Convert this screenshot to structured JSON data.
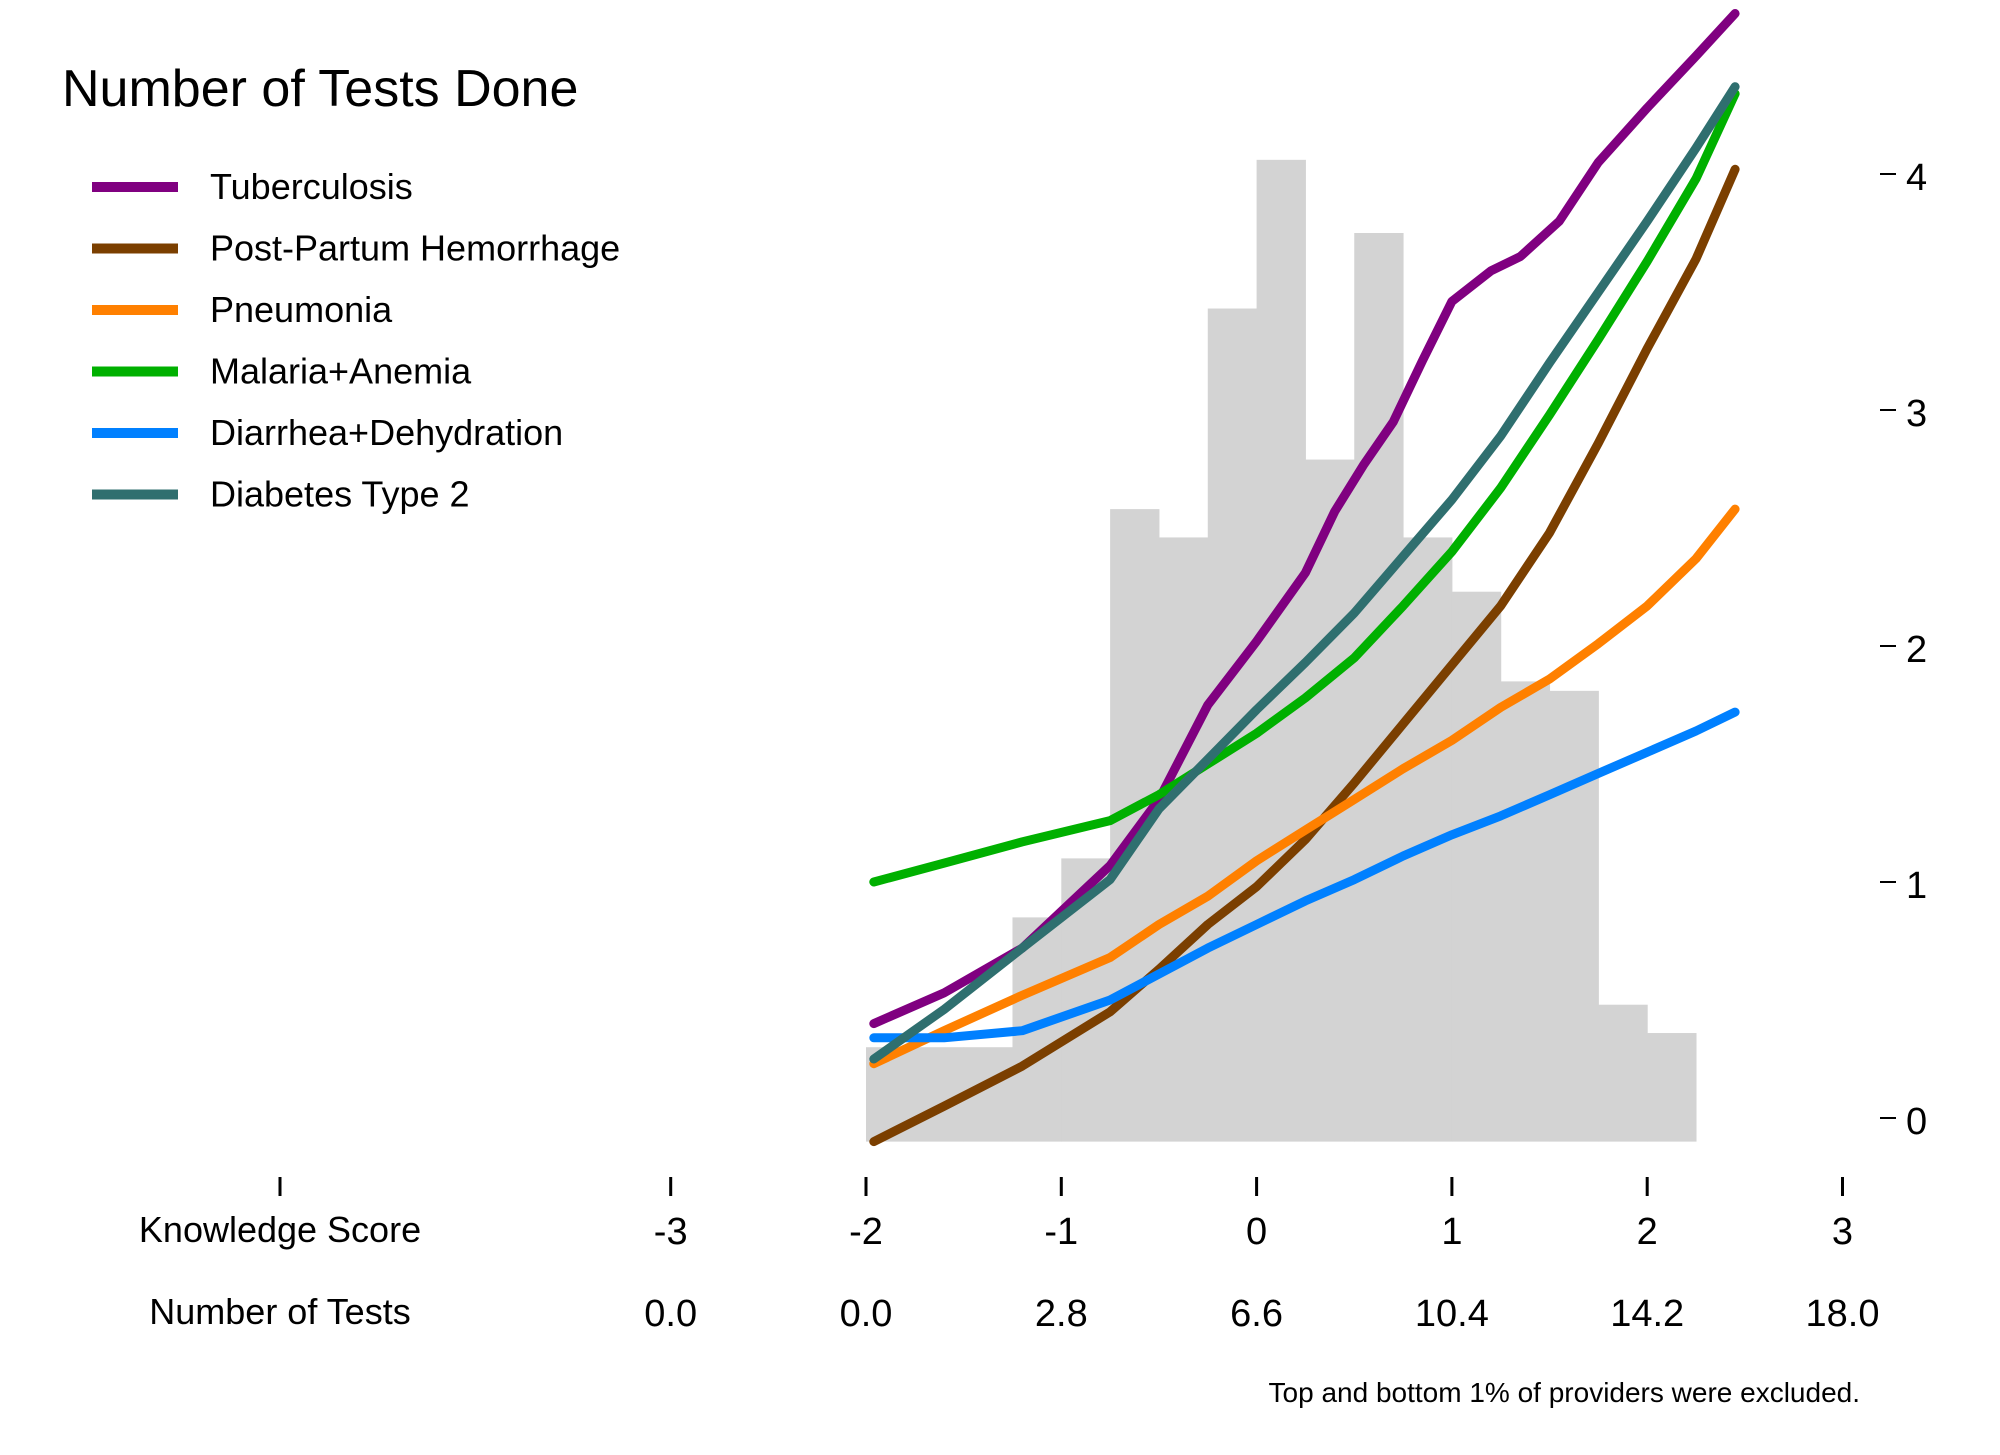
{
  "chart_data": {
    "type": "line",
    "title": "Number of Tests Done",
    "note": "Top and bottom 1% of providers were excluded.",
    "x_axis": {
      "row_labels": [
        "Knowledge Score",
        "Number of Tests"
      ],
      "ticks": [
        -3,
        -2,
        -1,
        0,
        1,
        2,
        3
      ],
      "tick_labels": [
        "-3",
        "-2",
        "-1",
        "0",
        "1",
        "2",
        "3"
      ],
      "secondary_labels": [
        "0.0",
        "0.0",
        "2.8",
        "6.6",
        "10.4",
        "14.2",
        "18.0"
      ],
      "xlim": [
        -4.0,
        3.0
      ]
    },
    "y_axis": {
      "side": "right",
      "ticks": [
        0,
        1,
        2,
        3,
        4
      ],
      "tick_labels": [
        "0",
        "1",
        "2",
        "3",
        "4"
      ],
      "ylim": [
        -0.1,
        4.1
      ]
    },
    "histogram": {
      "color": "#d3d3d3",
      "bin_width": 0.25,
      "bins": [
        {
          "x0": -2.0,
          "height": 0.3
        },
        {
          "x0": -1.75,
          "height": 0.3
        },
        {
          "x0": -1.5,
          "height": 0.3
        },
        {
          "x0": -1.25,
          "height": 0.85
        },
        {
          "x0": -1.0,
          "height": 1.1
        },
        {
          "x0": -0.75,
          "height": 2.58
        },
        {
          "x0": -0.5,
          "height": 2.46
        },
        {
          "x0": -0.25,
          "height": 3.43
        },
        {
          "x0": 0.0,
          "height": 4.06
        },
        {
          "x0": 0.25,
          "height": 2.79
        },
        {
          "x0": 0.5,
          "height": 3.75
        },
        {
          "x0": 0.75,
          "height": 2.46
        },
        {
          "x0": 1.0,
          "height": 2.23
        },
        {
          "x0": 1.25,
          "height": 1.85
        },
        {
          "x0": 1.5,
          "height": 1.81
        },
        {
          "x0": 1.75,
          "height": 0.48
        },
        {
          "x0": 2.0,
          "height": 0.36
        }
      ]
    },
    "legend_position": "top-left",
    "series": [
      {
        "name": "Tuberculosis",
        "color": "#800080",
        "x": [
          -1.96,
          -1.6,
          -1.2,
          -0.75,
          -0.5,
          -0.25,
          0.0,
          0.25,
          0.4,
          0.55,
          0.7,
          0.85,
          1.0,
          1.2,
          1.35,
          1.55,
          1.75,
          2.0,
          2.25,
          2.45
        ],
        "y": [
          0.4,
          0.53,
          0.72,
          1.07,
          1.35,
          1.75,
          2.02,
          2.31,
          2.57,
          2.77,
          2.95,
          3.21,
          3.46,
          3.59,
          3.65,
          3.8,
          4.05,
          4.28,
          4.5,
          4.68
        ]
      },
      {
        "name": "Post-Partum Hemorrhage",
        "color": "#7b3f00",
        "x": [
          -1.96,
          -1.6,
          -1.2,
          -0.75,
          -0.5,
          -0.25,
          0.0,
          0.25,
          0.5,
          0.75,
          1.0,
          1.25,
          1.5,
          1.75,
          2.0,
          2.25,
          2.45
        ],
        "y": [
          -0.1,
          0.05,
          0.22,
          0.45,
          0.63,
          0.82,
          0.98,
          1.18,
          1.42,
          1.67,
          1.92,
          2.17,
          2.48,
          2.86,
          3.26,
          3.64,
          4.02
        ]
      },
      {
        "name": "Pneumonia",
        "color": "#ff8000",
        "x": [
          -1.96,
          -1.6,
          -1.2,
          -0.75,
          -0.5,
          -0.25,
          0.0,
          0.25,
          0.5,
          0.75,
          1.0,
          1.25,
          1.5,
          1.75,
          2.0,
          2.25,
          2.45
        ],
        "y": [
          0.23,
          0.37,
          0.52,
          0.68,
          0.82,
          0.94,
          1.09,
          1.22,
          1.35,
          1.48,
          1.6,
          1.74,
          1.86,
          2.01,
          2.17,
          2.37,
          2.58
        ]
      },
      {
        "name": "Malaria+Anemia",
        "color": "#00b000",
        "x": [
          -1.96,
          -1.6,
          -1.2,
          -0.75,
          -0.5,
          -0.25,
          0.0,
          0.25,
          0.5,
          0.75,
          1.0,
          1.25,
          1.5,
          1.75,
          2.0,
          2.25,
          2.45
        ],
        "y": [
          1.0,
          1.08,
          1.17,
          1.26,
          1.37,
          1.5,
          1.63,
          1.78,
          1.95,
          2.17,
          2.4,
          2.67,
          2.98,
          3.3,
          3.63,
          3.98,
          4.34
        ]
      },
      {
        "name": "Diarrhea+Dehydration",
        "color": "#0080ff",
        "x": [
          -1.96,
          -1.6,
          -1.2,
          -0.75,
          -0.5,
          -0.25,
          0.0,
          0.25,
          0.5,
          0.75,
          1.0,
          1.25,
          1.5,
          1.75,
          2.0,
          2.25,
          2.45
        ],
        "y": [
          0.34,
          0.34,
          0.37,
          0.5,
          0.61,
          0.72,
          0.82,
          0.92,
          1.01,
          1.11,
          1.2,
          1.28,
          1.37,
          1.46,
          1.55,
          1.64,
          1.72
        ]
      },
      {
        "name": "Diabetes Type 2",
        "color": "#2f6f6f",
        "x": [
          -1.96,
          -1.6,
          -1.2,
          -0.75,
          -0.5,
          -0.25,
          0.0,
          0.25,
          0.5,
          0.75,
          1.0,
          1.25,
          1.5,
          1.75,
          2.0,
          2.25,
          2.45
        ],
        "y": [
          0.25,
          0.46,
          0.72,
          1.01,
          1.31,
          1.52,
          1.73,
          1.93,
          2.14,
          2.38,
          2.62,
          2.89,
          3.2,
          3.5,
          3.8,
          4.11,
          4.37
        ]
      }
    ]
  }
}
